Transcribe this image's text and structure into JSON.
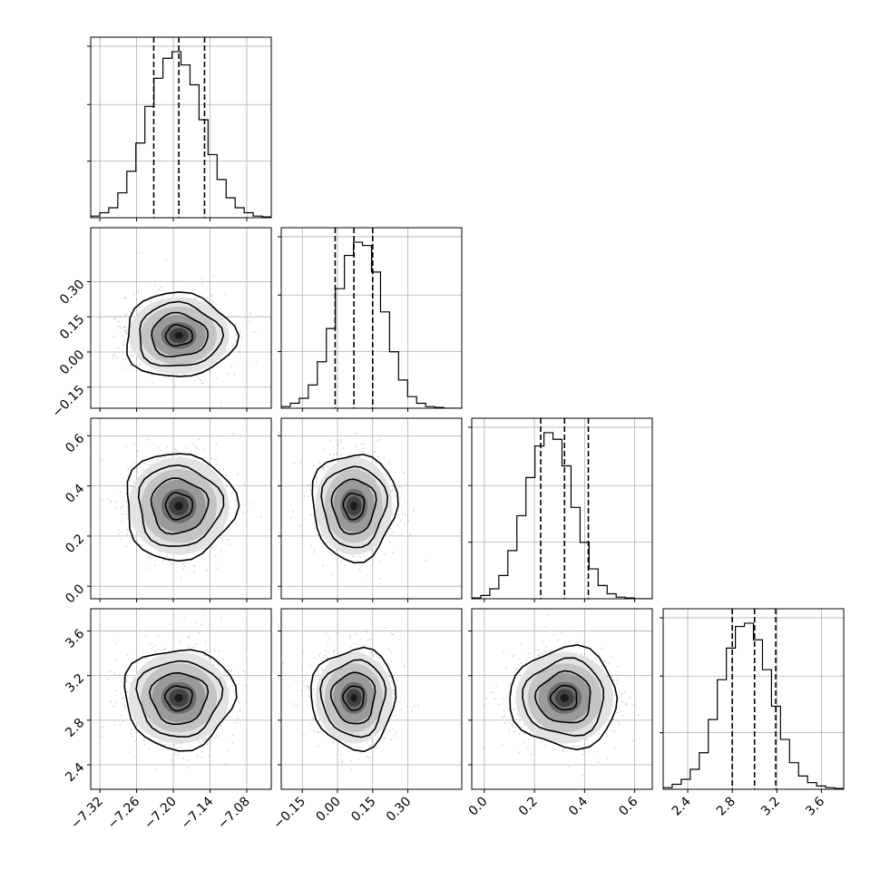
{
  "chart_data": {
    "type": "corner",
    "grid": true,
    "params": [
      {
        "range": [
          -7.335,
          -7.04
        ],
        "ticks": [
          "−7.32",
          "−7.26",
          "−7.20",
          "−7.14",
          "−7.08"
        ],
        "tick_values": [
          -7.32,
          -7.26,
          -7.2,
          -7.14,
          -7.08
        ],
        "hist": {
          "bins": 20,
          "counts": [
            0.01,
            0.03,
            0.06,
            0.15,
            0.28,
            0.45,
            0.67,
            0.84,
            0.96,
            1.0,
            0.92,
            0.8,
            0.59,
            0.38,
            0.23,
            0.12,
            0.06,
            0.03,
            0.01,
            0.005
          ]
        },
        "quantiles": [
          -7.232,
          -7.191,
          -7.149
        ],
        "center": -7.191,
        "spread": 0.04
      },
      {
        "range": [
          -0.24,
          0.53
        ],
        "ticks": [
          "−0.15",
          "0.00",
          "0.15",
          "0.30"
        ],
        "tick_values": [
          -0.15,
          0.0,
          0.15,
          0.3
        ],
        "hist": {
          "bins": 20,
          "counts": [
            0.01,
            0.03,
            0.06,
            0.14,
            0.28,
            0.48,
            0.72,
            0.92,
            1.0,
            0.98,
            0.82,
            0.58,
            0.34,
            0.17,
            0.07,
            0.03,
            0.01,
            0.005,
            0.0,
            0.0
          ]
        },
        "quantiles": [
          -0.01,
          0.07,
          0.15
        ],
        "center": 0.07,
        "spread": 0.08
      },
      {
        "range": [
          -0.05,
          0.67
        ],
        "ticks": [
          "0.0",
          "0.2",
          "0.4",
          "0.6"
        ],
        "tick_values": [
          0.0,
          0.2,
          0.4,
          0.6
        ],
        "hist": {
          "bins": 20,
          "counts": [
            0.005,
            0.02,
            0.06,
            0.14,
            0.29,
            0.5,
            0.73,
            0.92,
            1.0,
            0.96,
            0.8,
            0.55,
            0.34,
            0.18,
            0.08,
            0.03,
            0.01,
            0.005,
            0.0,
            0.0
          ]
        },
        "quantiles": [
          0.225,
          0.32,
          0.415
        ],
        "center": 0.32,
        "spread": 0.095
      },
      {
        "range": [
          2.18,
          3.8
        ],
        "ticks": [
          "2.4",
          "2.8",
          "3.2",
          "3.6"
        ],
        "tick_values": [
          2.4,
          2.8,
          3.2,
          3.6
        ],
        "hist": {
          "bins": 20,
          "counts": [
            0.01,
            0.03,
            0.06,
            0.12,
            0.22,
            0.42,
            0.66,
            0.85,
            0.98,
            1.0,
            0.9,
            0.72,
            0.5,
            0.3,
            0.16,
            0.08,
            0.04,
            0.02,
            0.01,
            0.005
          ]
        },
        "quantiles": [
          2.8,
          3.0,
          3.19
        ],
        "center": 3.0,
        "spread": 0.2
      }
    ]
  }
}
